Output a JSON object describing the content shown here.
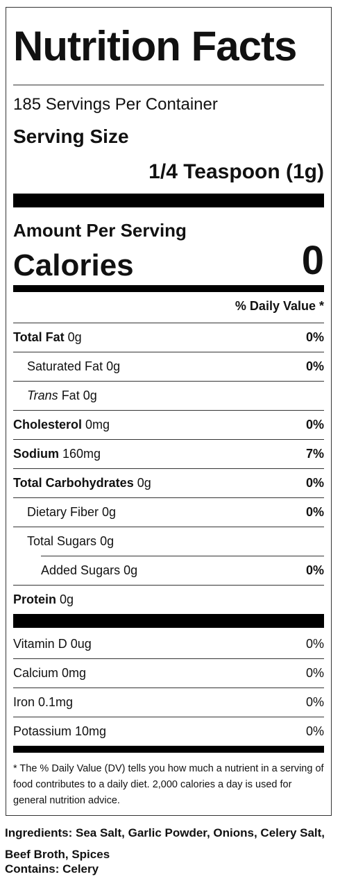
{
  "title": "Nutrition Facts",
  "servings_per_container": "185 Servings Per Container",
  "serving_size_label": "Serving Size",
  "serving_size_value": "1/4 Teaspoon (1g)",
  "amount_per_serving": "Amount Per Serving",
  "calories_label": "Calories",
  "calories_value": "0",
  "daily_value_header": "% Daily Value *",
  "nutrients": [
    {
      "name": "Total Fat",
      "amount": " 0g",
      "pct": "0%"
    },
    {
      "name": "Saturated Fat",
      "amount": " 0g",
      "pct": "0%"
    },
    {
      "name": "Trans",
      "amount": " Fat 0g",
      "pct": ""
    },
    {
      "name": "Cholesterol",
      "amount": " 0mg",
      "pct": "0%"
    },
    {
      "name": "Sodium",
      "amount": " 160mg",
      "pct": "7%"
    },
    {
      "name": "Total Carbohydrates",
      "amount": " 0g",
      "pct": "0%"
    },
    {
      "name": "Dietary Fiber",
      "amount": " 0g",
      "pct": "0%"
    },
    {
      "name": "Total Sugars",
      "amount": " 0g",
      "pct": ""
    },
    {
      "name": "Added Sugars",
      "amount": " 0g",
      "pct": "0%"
    },
    {
      "name": "Protein",
      "amount": " 0g",
      "pct": ""
    }
  ],
  "vitamins": [
    {
      "name": "Vitamin D 0ug",
      "pct": "0%"
    },
    {
      "name": "Calcium 0mg",
      "pct": "0%"
    },
    {
      "name": "Iron 0.1mg",
      "pct": "0%"
    },
    {
      "name": "Potassium 10mg",
      "pct": "0%"
    }
  ],
  "footnote": "* The % Daily Value (DV) tells you how much a nutrient in a serving of food contributes to a daily diet. 2,000 calories a day is used for general nutrition advice.",
  "ingredients": "Ingredients: Sea Salt, Garlic Powder, Onions, Celery Salt, Beef Broth, Spices",
  "contains": "Contains: Celery"
}
